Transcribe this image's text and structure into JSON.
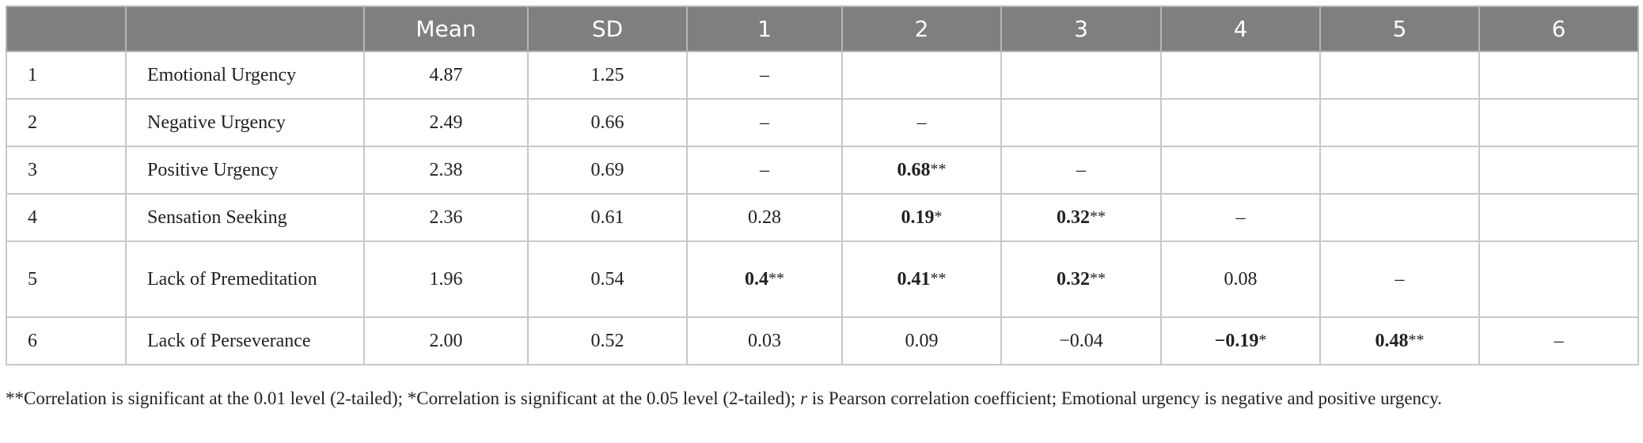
{
  "table": {
    "header": [
      "",
      "",
      "Mean",
      "SD",
      "1",
      "2",
      "3",
      "4",
      "5",
      "6"
    ],
    "rows": [
      [
        "1",
        "Emotional Urgency",
        "4.87",
        "1.25",
        "–",
        "",
        "",
        "",
        "",
        ""
      ],
      [
        "2",
        "Negative Urgency",
        "2.49",
        "0.66",
        "–",
        "–",
        "",
        "",
        "",
        ""
      ],
      [
        "3",
        "Positive Urgency",
        "2.38",
        "0.69",
        "–",
        {
          "value": "0.68",
          "stars": "**"
        },
        "–",
        "",
        "",
        ""
      ],
      [
        "4",
        "Sensation Seeking",
        "2.36",
        "0.61",
        "0.28",
        {
          "value": "0.19",
          "stars": "*"
        },
        {
          "value": "0.32",
          "stars": "**"
        },
        "–",
        "",
        ""
      ],
      [
        "5",
        "Lack of Premeditation",
        "1.96",
        "0.54",
        {
          "value": "0.4",
          "stars": "**"
        },
        {
          "value": "0.41",
          "stars": "**"
        },
        {
          "value": "0.32",
          "stars": "**"
        },
        "0.08",
        "–",
        ""
      ],
      [
        "6",
        "Lack of Perseverance",
        "2.00",
        "0.52",
        "0.03",
        "0.09",
        "−0.04",
        {
          "value": "−0.19",
          "stars": "*"
        },
        {
          "value": "0.48",
          "stars": "**"
        },
        "–"
      ]
    ]
  },
  "footnote": [
    "**Correlation is significant at the 0.01 level (2-tailed); *Correlation is significant at the 0.05 level (2-tailed); ",
    "r",
    " is Pearson correlation coefficient; Emotional urgency is negative and positive urgency."
  ]
}
